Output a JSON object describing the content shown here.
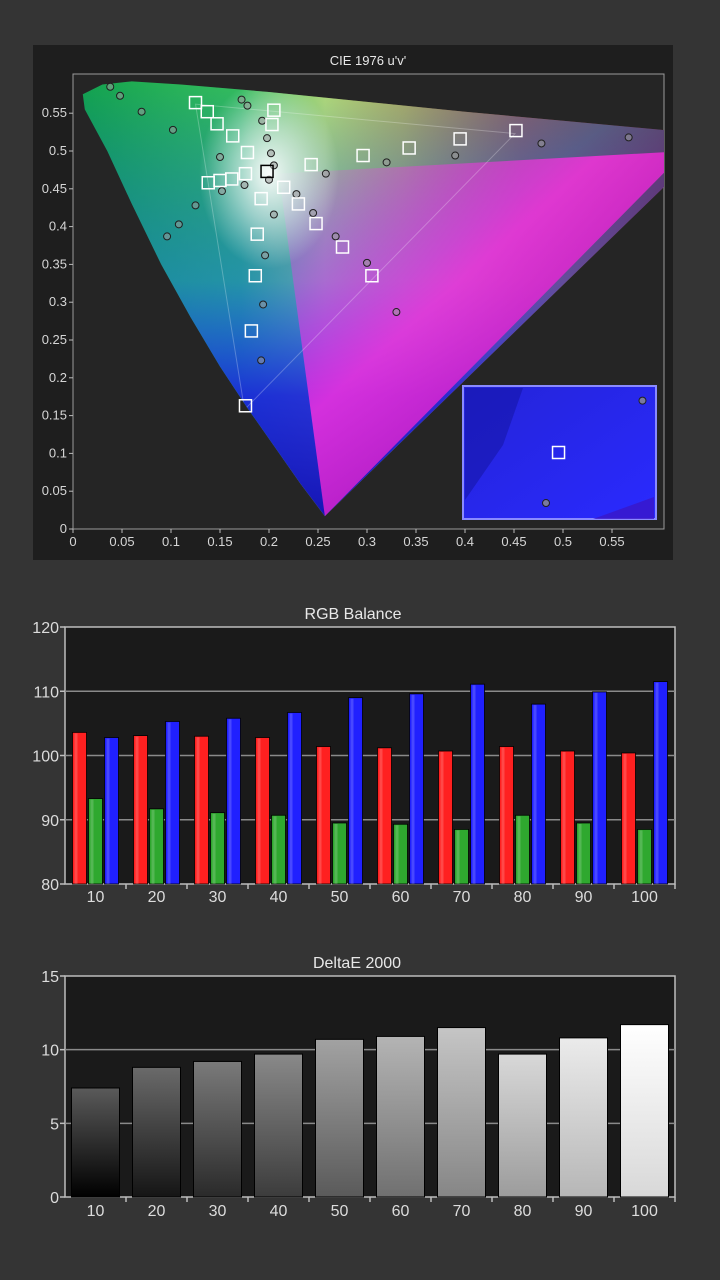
{
  "chart_data": [
    {
      "type": "scatter",
      "title": "CIE 1976 u'v'",
      "xlim": [
        0,
        0.6
      ],
      "ylim": [
        0,
        0.6
      ],
      "x_ticks": [
        "0",
        "0.05",
        "0.1",
        "0.15",
        "0.2",
        "0.25",
        "0.3",
        "0.35",
        "0.4",
        "0.45",
        "0.5",
        "0.55"
      ],
      "y_ticks": [
        "0",
        "0.05",
        "0.1",
        "0.15",
        "0.2",
        "0.25",
        "0.3",
        "0.35",
        "0.4",
        "0.45",
        "0.5",
        "0.55"
      ],
      "series": [
        {
          "marker": "square",
          "points": [
            [
              0.125,
              0.564
            ],
            [
              0.137,
              0.552
            ],
            [
              0.147,
              0.536
            ],
            [
              0.163,
              0.52
            ],
            [
              0.178,
              0.498
            ],
            [
              0.205,
              0.554
            ],
            [
              0.203,
              0.535
            ],
            [
              0.198,
              0.473
            ],
            [
              0.215,
              0.452
            ],
            [
              0.23,
              0.43
            ],
            [
              0.248,
              0.404
            ],
            [
              0.275,
              0.373
            ],
            [
              0.305,
              0.335
            ],
            [
              0.192,
              0.437
            ],
            [
              0.188,
              0.39
            ],
            [
              0.186,
              0.335
            ],
            [
              0.182,
              0.262
            ],
            [
              0.176,
              0.163
            ],
            [
              0.138,
              0.458
            ],
            [
              0.15,
              0.461
            ],
            [
              0.162,
              0.463
            ],
            [
              0.176,
              0.47
            ],
            [
              0.243,
              0.482
            ],
            [
              0.296,
              0.494
            ],
            [
              0.343,
              0.504
            ],
            [
              0.395,
              0.516
            ],
            [
              0.452,
              0.527
            ]
          ]
        },
        {
          "marker": "circle",
          "points": [
            [
              0.038,
              0.585
            ],
            [
              0.048,
              0.573
            ],
            [
              0.07,
              0.552
            ],
            [
              0.102,
              0.528
            ],
            [
              0.125,
              0.428
            ],
            [
              0.108,
              0.403
            ],
            [
              0.096,
              0.387
            ],
            [
              0.172,
              0.568
            ],
            [
              0.178,
              0.56
            ],
            [
              0.193,
              0.54
            ],
            [
              0.198,
              0.517
            ],
            [
              0.202,
              0.497
            ],
            [
              0.205,
              0.481
            ],
            [
              0.2,
              0.462
            ],
            [
              0.205,
              0.416
            ],
            [
              0.15,
              0.492
            ],
            [
              0.152,
              0.447
            ],
            [
              0.175,
              0.455
            ],
            [
              0.196,
              0.362
            ],
            [
              0.194,
              0.297
            ],
            [
              0.192,
              0.223
            ],
            [
              0.228,
              0.443
            ],
            [
              0.245,
              0.418
            ],
            [
              0.258,
              0.47
            ],
            [
              0.268,
              0.387
            ],
            [
              0.3,
              0.352
            ],
            [
              0.32,
              0.485
            ],
            [
              0.33,
              0.287
            ],
            [
              0.39,
              0.494
            ],
            [
              0.478,
              0.51
            ],
            [
              0.567,
              0.518
            ]
          ]
        }
      ],
      "inset": {
        "square": [
          0.495,
          0.0625
        ],
        "circles": [
          [
            0.93,
            0.11
          ],
          [
            0.43,
            0.88
          ]
        ]
      }
    },
    {
      "type": "bar",
      "title": "RGB Balance",
      "categories": [
        "10",
        "20",
        "30",
        "40",
        "50",
        "60",
        "70",
        "80",
        "90",
        "100"
      ],
      "ylim": [
        80,
        120
      ],
      "y_ticks": [
        "80",
        "90",
        "100",
        "110",
        "120"
      ],
      "series": [
        {
          "color": "#ff2020",
          "values": [
            103.6,
            103.1,
            103.0,
            102.8,
            101.4,
            101.2,
            100.7,
            101.4,
            100.7,
            100.4
          ]
        },
        {
          "color": "#2fa82f",
          "values": [
            93.3,
            91.7,
            91.1,
            90.7,
            89.5,
            89.3,
            88.5,
            90.7,
            89.5,
            88.5
          ]
        },
        {
          "color": "#2020ff",
          "values": [
            102.8,
            105.3,
            105.8,
            106.7,
            109.0,
            109.6,
            111.1,
            108.0,
            109.9,
            111.5
          ]
        }
      ]
    },
    {
      "type": "bar",
      "title": "DeltaE 2000",
      "categories": [
        "10",
        "20",
        "30",
        "40",
        "50",
        "60",
        "70",
        "80",
        "90",
        "100"
      ],
      "ylim": [
        0,
        15
      ],
      "y_ticks": [
        "0",
        "5",
        "10",
        "15"
      ],
      "values": [
        7.4,
        8.8,
        9.2,
        9.7,
        10.7,
        10.9,
        11.5,
        9.7,
        10.8,
        11.7
      ],
      "bar_colors": [
        [
          "#5a5a5a",
          "#000000"
        ],
        [
          "#6a6a6a",
          "#151515"
        ],
        [
          "#7a7a7a",
          "#2a2a2a"
        ],
        [
          "#898989",
          "#3c3c3c"
        ],
        [
          "#a2a2a2",
          "#5a5a5a"
        ],
        [
          "#b4b4b4",
          "#707070"
        ],
        [
          "#c5c5c5",
          "#868686"
        ],
        [
          "#d8d8d8",
          "#9c9c9c"
        ],
        [
          "#ebebeb",
          "#b6b6b6"
        ],
        [
          "#ffffff",
          "#d8d8d8"
        ]
      ]
    }
  ]
}
